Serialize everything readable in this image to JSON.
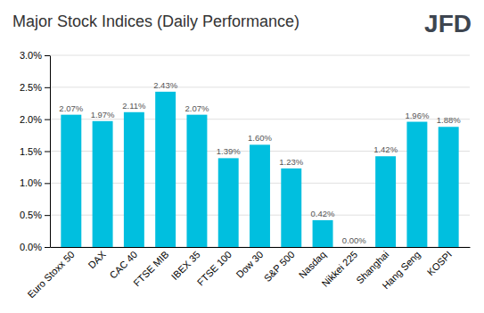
{
  "chart_data": {
    "type": "bar",
    "title": "Major Stock Indices (Daily Performance)",
    "annotations": [
      "JFD"
    ],
    "categories": [
      "Euro Stoxx 50",
      "DAX",
      "CAC 40",
      "FTSE MIB",
      "IBEX 35",
      "FTSE 100",
      "Dow 30",
      "S&P 500",
      "Nasdaq",
      "Nikkei 225",
      "Shanghai",
      "Hang Seng",
      "KOSPI"
    ],
    "values": [
      2.07,
      1.97,
      2.11,
      2.43,
      2.07,
      1.39,
      1.6,
      1.23,
      0.42,
      0.0,
      1.42,
      1.96,
      1.88
    ],
    "value_labels": [
      "2.07%",
      "1.97%",
      "2.11%",
      "2.43%",
      "2.07%",
      "1.39%",
      "1.60%",
      "1.23%",
      "0.42%",
      "0.00%",
      "1.42%",
      "1.96%",
      "1.88%"
    ],
    "data_labels": true,
    "color": "#00BFDF",
    "ylim": [
      0,
      3.0
    ],
    "yticks": [
      {
        "value": 0.0,
        "label": "0.0%"
      },
      {
        "value": 0.5,
        "label": "0.5%"
      },
      {
        "value": 1.0,
        "label": "1.0%"
      },
      {
        "value": 1.5,
        "label": "1.5%"
      },
      {
        "value": 2.0,
        "label": "2.0%"
      },
      {
        "value": 2.5,
        "label": "2.5%"
      },
      {
        "value": 3.0,
        "label": "3.0%"
      }
    ],
    "grid": true
  }
}
